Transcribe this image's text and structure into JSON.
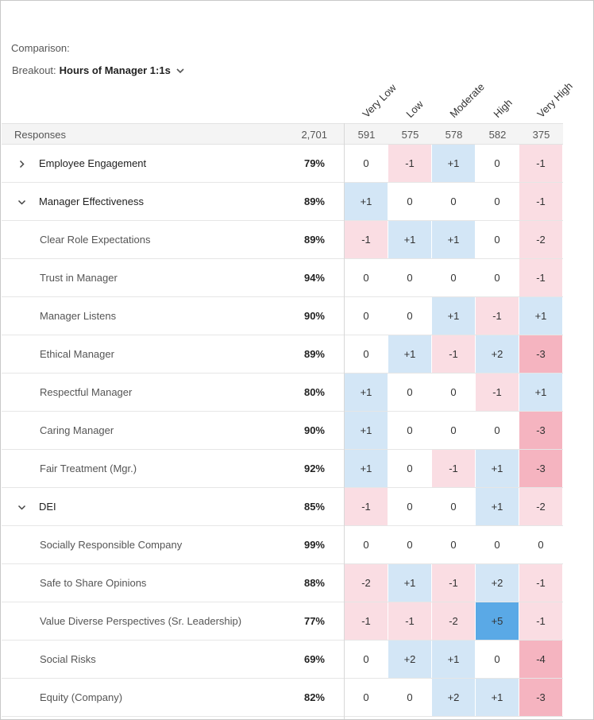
{
  "header": {
    "comparison_label": "Comparison:",
    "breakout_label": "Breakout:",
    "breakout_value": "Hours of Manager 1:1s",
    "breakout_icon": "chevron-down-icon"
  },
  "columns": [
    "Very Low",
    "Low",
    "Moderate",
    "High",
    "Very High"
  ],
  "responses": {
    "label": "Responses",
    "total": "2,701",
    "counts": [
      "591",
      "575",
      "578",
      "582",
      "375"
    ]
  },
  "colors": {
    "positive_light": "#d3e6f6",
    "positive_strong": "#5aa9e6",
    "negative_light": "#fadde3",
    "negative_strong": "#f5b4c0"
  },
  "rows": [
    {
      "label": "Employee Engagement",
      "type": "group",
      "expanded": false,
      "score": "79%",
      "values": [
        "0",
        "-1",
        "+1",
        "0",
        "-1"
      ]
    },
    {
      "label": "Manager Effectiveness",
      "type": "group",
      "expanded": true,
      "score": "89%",
      "values": [
        "+1",
        "0",
        "0",
        "0",
        "-1"
      ]
    },
    {
      "label": "Clear Role Expectations",
      "type": "child",
      "score": "89%",
      "values": [
        "-1",
        "+1",
        "+1",
        "0",
        "-2"
      ]
    },
    {
      "label": "Trust in Manager",
      "type": "child",
      "score": "94%",
      "values": [
        "0",
        "0",
        "0",
        "0",
        "-1"
      ]
    },
    {
      "label": "Manager Listens",
      "type": "child",
      "score": "90%",
      "values": [
        "0",
        "0",
        "+1",
        "-1",
        "+1"
      ]
    },
    {
      "label": "Ethical Manager",
      "type": "child",
      "score": "89%",
      "values": [
        "0",
        "+1",
        "-1",
        "+2",
        "-3"
      ]
    },
    {
      "label": "Respectful Manager",
      "type": "child",
      "score": "80%",
      "values": [
        "+1",
        "0",
        "0",
        "-1",
        "+1"
      ]
    },
    {
      "label": "Caring Manager",
      "type": "child",
      "score": "90%",
      "values": [
        "+1",
        "0",
        "0",
        "0",
        "-3"
      ]
    },
    {
      "label": "Fair Treatment (Mgr.)",
      "type": "child",
      "score": "92%",
      "values": [
        "+1",
        "0",
        "-1",
        "+1",
        "-3"
      ]
    },
    {
      "label": "DEI",
      "type": "group",
      "expanded": true,
      "score": "85%",
      "values": [
        "-1",
        "0",
        "0",
        "+1",
        "-2"
      ]
    },
    {
      "label": "Socially Responsible Company",
      "type": "child",
      "score": "99%",
      "values": [
        "0",
        "0",
        "0",
        "0",
        "0"
      ]
    },
    {
      "label": "Safe to Share Opinions",
      "type": "child",
      "score": "88%",
      "values": [
        "-2",
        "+1",
        "-1",
        "+2",
        "-1"
      ]
    },
    {
      "label": "Value Diverse Perspectives (Sr. Leadership)",
      "type": "child",
      "score": "77%",
      "values": [
        "-1",
        "-1",
        "-2",
        "+5",
        "-1"
      ]
    },
    {
      "label": "Social Risks",
      "type": "child",
      "score": "69%",
      "values": [
        "0",
        "+2",
        "+1",
        "0",
        "-4"
      ]
    },
    {
      "label": "Equity (Company)",
      "type": "child",
      "score": "82%",
      "values": [
        "0",
        "0",
        "+2",
        "+1",
        "-3"
      ]
    }
  ]
}
